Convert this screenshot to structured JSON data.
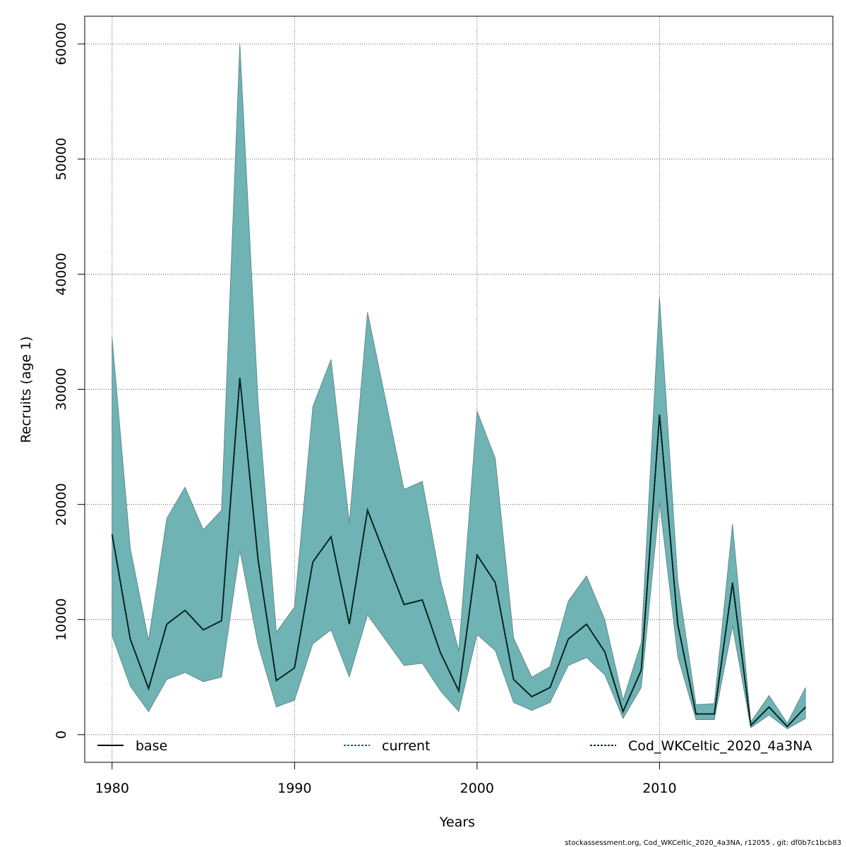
{
  "chart_data": {
    "type": "area",
    "xlabel": "Years",
    "ylabel": "Recruits (age 1)",
    "xlim": [
      1978.5,
      2019.5
    ],
    "ylim": [
      -2400,
      62400
    ],
    "xticks": [
      1980,
      1990,
      2000,
      2010
    ],
    "yticks": [
      0,
      10000,
      20000,
      30000,
      40000,
      50000,
      60000
    ],
    "grid": true,
    "legend_position": "bottom",
    "x": [
      1980,
      1981,
      1982,
      1983,
      1984,
      1985,
      1986,
      1987,
      1988,
      1989,
      1990,
      1991,
      1992,
      1993,
      1994,
      1995,
      1996,
      1997,
      1998,
      1999,
      2000,
      2001,
      2002,
      2003,
      2004,
      2005,
      2006,
      2007,
      2008,
      2009,
      2010,
      2011,
      2012,
      2013,
      2014,
      2015,
      2016,
      2017,
      2018
    ],
    "band": {
      "lower": [
        8600,
        4200,
        2000,
        4800,
        5400,
        4600,
        5000,
        16000,
        7800,
        2400,
        3000,
        7900,
        9100,
        5000,
        10400,
        8200,
        6000,
        6200,
        3800,
        2000,
        8700,
        7300,
        2800,
        2100,
        2800,
        6000,
        6700,
        5200,
        1400,
        4100,
        20200,
        6800,
        1300,
        1300,
        9400,
        600,
        1700,
        500,
        1400
      ],
      "upper": [
        34500,
        16200,
        8200,
        18800,
        21500,
        17800,
        19500,
        60000,
        29000,
        8900,
        11100,
        28500,
        32600,
        18400,
        36700,
        29000,
        21300,
        22000,
        13400,
        7300,
        28100,
        24000,
        8400,
        5000,
        5900,
        11600,
        13800,
        10000,
        3000,
        8000,
        38000,
        13400,
        2600,
        2700,
        18300,
        1100,
        3400,
        1000,
        4100
      ],
      "color": "#6fb3b4"
    },
    "series": [
      {
        "name": "base",
        "values": [
          17400,
          8300,
          4000,
          9600,
          10800,
          9100,
          9900,
          31000,
          15200,
          4700,
          5800,
          15000,
          17200,
          9600,
          19500,
          15400,
          11300,
          11700,
          7100,
          3800,
          15600,
          13200,
          4800,
          3300,
          4100,
          8300,
          9600,
          7200,
          2000,
          5600,
          27800,
          9600,
          1800,
          1800,
          13200,
          800,
          2400,
          700,
          2400
        ],
        "color": "#000000",
        "dash": ""
      },
      {
        "name": "current",
        "values": [
          17400,
          8300,
          4000,
          9600,
          10800,
          9100,
          9900,
          31000,
          15200,
          4700,
          5800,
          15000,
          17200,
          9600,
          19500,
          15400,
          11300,
          11700,
          7100,
          3800,
          15600,
          13200,
          4800,
          3300,
          4100,
          8300,
          9600,
          7200,
          2000,
          5600,
          27800,
          9600,
          1800,
          1800,
          13200,
          800,
          2400,
          700,
          2400
        ],
        "color": "#1f5f9f",
        "dash": "3,2"
      },
      {
        "name": "Cod_WKCeltic_2020_4a3NA",
        "values": [
          17400,
          8300,
          4000,
          9600,
          10800,
          9100,
          9900,
          31000,
          15200,
          4700,
          5800,
          15000,
          17200,
          9600,
          19500,
          15400,
          11300,
          11700,
          7100,
          3800,
          15600,
          13200,
          4800,
          3300,
          4100,
          8300,
          9600,
          7200,
          2000,
          5600,
          27800,
          9600,
          1800,
          1800,
          13200,
          800,
          2400,
          700,
          2400
        ],
        "color": "#003322",
        "dash": "3,2"
      }
    ]
  },
  "footer": "stockassessment.org, Cod_WKCeltic_2020_4a3NA, r12055 , git: df0b7c1bcb83"
}
